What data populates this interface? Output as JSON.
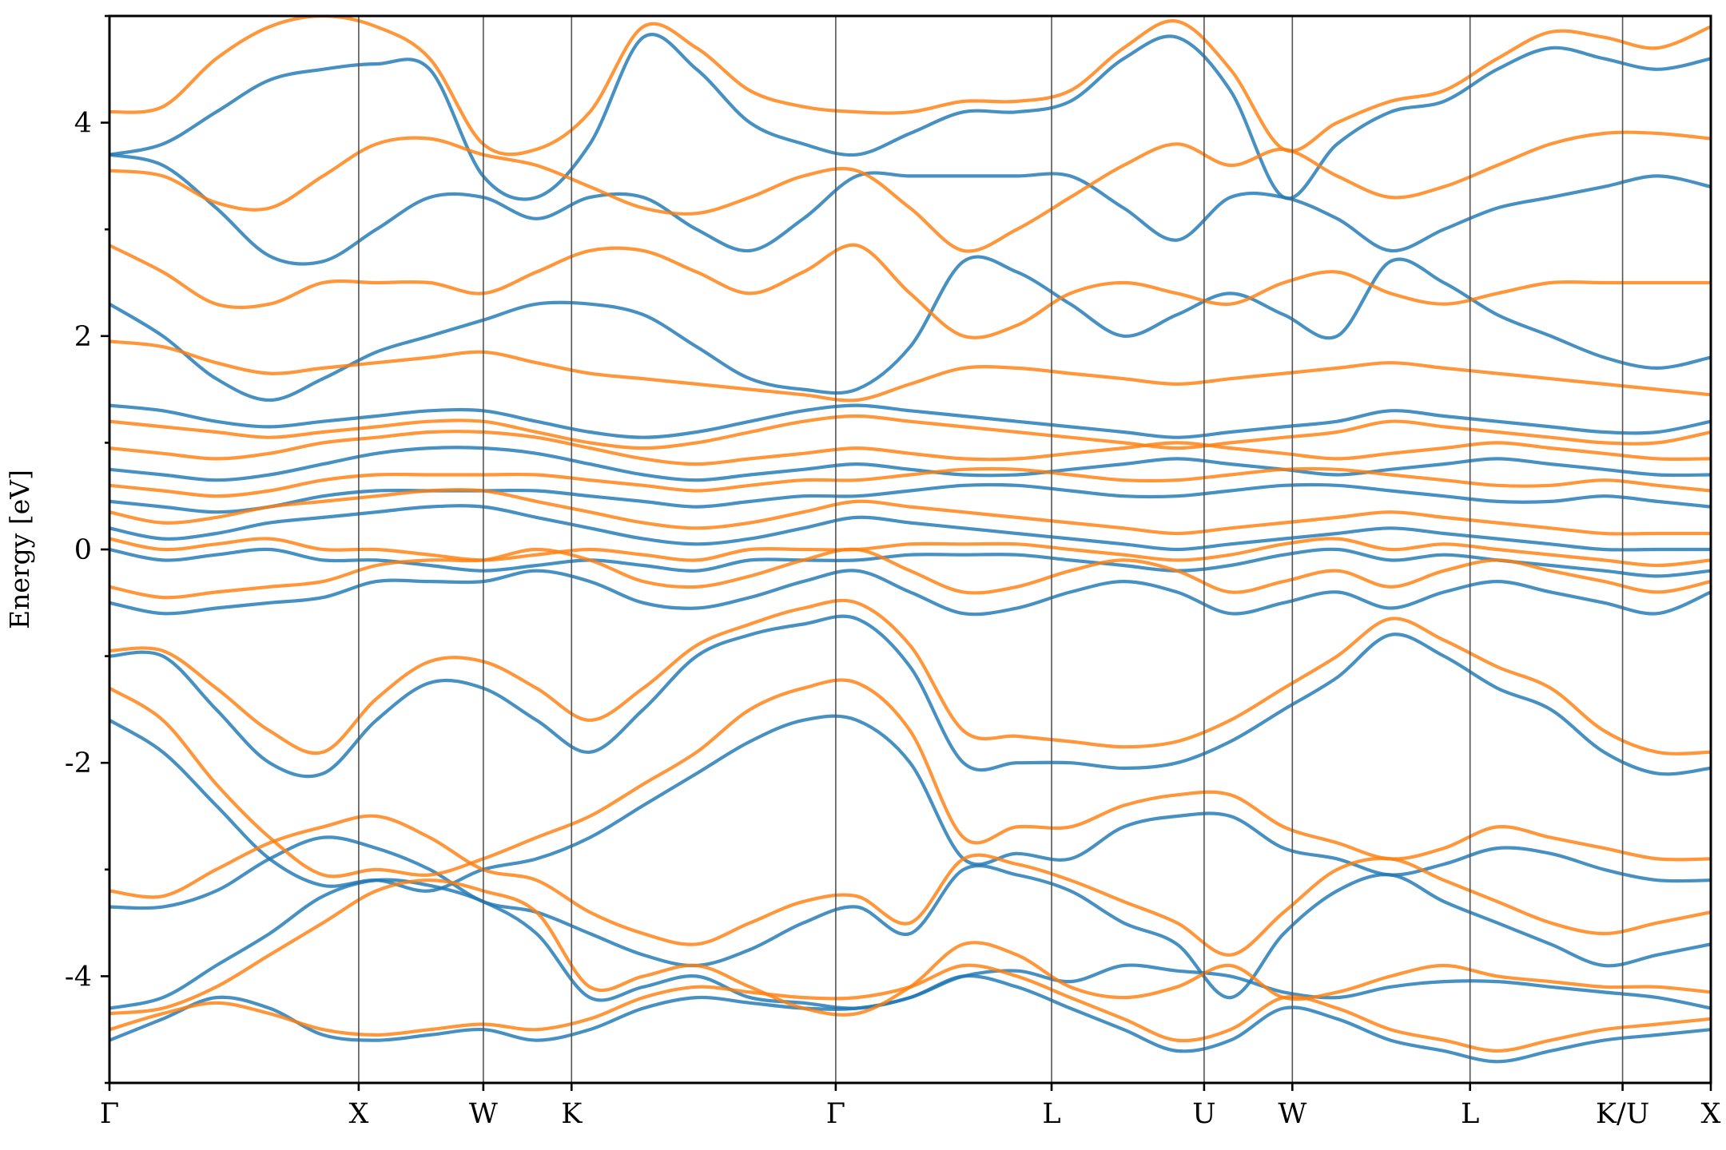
{
  "chart_data": {
    "type": "line",
    "title": "",
    "ylabel": "Energy [eV]",
    "xlabel": "",
    "ylim": [
      -5,
      5
    ],
    "yticks": [
      -4,
      -2,
      0,
      2,
      4
    ],
    "yticks_minor": [
      -5,
      -3,
      -1,
      1,
      3,
      5
    ],
    "grid": false,
    "legend": "none",
    "kpath": {
      "labels": [
        "Γ",
        "X",
        "W",
        "K",
        "Γ",
        "L",
        "U",
        "W",
        "L",
        "K/U",
        "X"
      ],
      "positions": [
        0,
        1.0,
        1.5,
        1.854,
        2.914,
        3.78,
        4.392,
        4.746,
        5.459,
        6.071,
        6.425
      ]
    },
    "series": [
      {
        "color": "#1f77b4",
        "bands": [
          [
            -4.3,
            -4.2,
            -3.9,
            -3.6,
            -3.25,
            -3.1,
            -3.15,
            -3.3,
            -3.6,
            -4.2,
            -4.1,
            -4.0,
            -4.2,
            -4.25,
            -4.3,
            -4.2,
            -4.0,
            -3.95,
            -4.05,
            -3.9,
            -3.95,
            -4.0,
            -4.15,
            -4.2,
            -4.1,
            -4.05,
            -4.05,
            -4.1,
            -4.15,
            -4.2,
            -4.3
          ],
          [
            -3.35,
            -3.35,
            -3.2,
            -2.9,
            -2.7,
            -2.8,
            -3.0,
            -3.3,
            -3.4,
            -3.6,
            -3.8,
            -3.9,
            -3.75,
            -3.5,
            -3.35,
            -3.6,
            -3.0,
            -3.05,
            -3.2,
            -3.5,
            -3.7,
            -4.2,
            -3.6,
            -3.2,
            -3.05,
            -3.3,
            -3.5,
            -3.7,
            -3.9,
            -3.8,
            -3.7
          ],
          [
            -1.6,
            -1.9,
            -2.4,
            -2.9,
            -3.15,
            -3.1,
            -3.2,
            -3.0,
            -2.9,
            -2.7,
            -2.4,
            -2.1,
            -1.8,
            -1.6,
            -1.6,
            -2.0,
            -2.9,
            -2.85,
            -2.9,
            -2.6,
            -2.5,
            -2.5,
            -2.8,
            -2.9,
            -3.05,
            -2.95,
            -2.8,
            -2.85,
            -3.0,
            -3.1,
            -3.1
          ],
          [
            -1.0,
            -1.0,
            -1.5,
            -2.0,
            -2.1,
            -1.6,
            -1.25,
            -1.3,
            -1.6,
            -1.9,
            -1.5,
            -1.0,
            -0.8,
            -0.7,
            -0.65,
            -1.1,
            -2.0,
            -2.0,
            -2.0,
            -2.05,
            -2.0,
            -1.8,
            -1.5,
            -1.2,
            -0.8,
            -1.0,
            -1.3,
            -1.5,
            -1.9,
            -2.1,
            -2.05
          ],
          [
            -0.5,
            -0.6,
            -0.55,
            -0.5,
            -0.45,
            -0.3,
            -0.3,
            -0.3,
            -0.2,
            -0.3,
            -0.5,
            -0.55,
            -0.45,
            -0.3,
            -0.2,
            -0.4,
            -0.6,
            -0.55,
            -0.4,
            -0.3,
            -0.4,
            -0.6,
            -0.5,
            -0.4,
            -0.55,
            -0.4,
            -0.3,
            -0.4,
            -0.5,
            -0.6,
            -0.4
          ],
          [
            0.0,
            -0.1,
            -0.05,
            0.0,
            -0.1,
            -0.1,
            -0.15,
            -0.2,
            -0.15,
            -0.1,
            -0.15,
            -0.2,
            -0.1,
            -0.1,
            -0.1,
            -0.05,
            -0.05,
            -0.05,
            -0.1,
            -0.15,
            -0.2,
            -0.15,
            -0.05,
            0.0,
            -0.1,
            -0.05,
            -0.1,
            -0.15,
            -0.2,
            -0.25,
            -0.2
          ],
          [
            0.2,
            0.1,
            0.15,
            0.25,
            0.3,
            0.35,
            0.4,
            0.4,
            0.3,
            0.2,
            0.1,
            0.05,
            0.1,
            0.2,
            0.3,
            0.25,
            0.2,
            0.15,
            0.1,
            0.05,
            0.0,
            0.05,
            0.1,
            0.15,
            0.2,
            0.15,
            0.1,
            0.05,
            0.0,
            0.0,
            0.0
          ],
          [
            0.45,
            0.4,
            0.35,
            0.4,
            0.5,
            0.55,
            0.55,
            0.55,
            0.55,
            0.5,
            0.45,
            0.4,
            0.45,
            0.5,
            0.5,
            0.55,
            0.6,
            0.6,
            0.55,
            0.5,
            0.5,
            0.55,
            0.6,
            0.6,
            0.55,
            0.5,
            0.45,
            0.45,
            0.5,
            0.45,
            0.4
          ],
          [
            0.75,
            0.7,
            0.65,
            0.7,
            0.8,
            0.9,
            0.95,
            0.95,
            0.9,
            0.8,
            0.7,
            0.65,
            0.7,
            0.75,
            0.8,
            0.75,
            0.7,
            0.7,
            0.75,
            0.8,
            0.85,
            0.8,
            0.75,
            0.7,
            0.75,
            0.8,
            0.85,
            0.8,
            0.75,
            0.7,
            0.7
          ],
          [
            1.35,
            1.3,
            1.2,
            1.15,
            1.2,
            1.25,
            1.3,
            1.3,
            1.2,
            1.1,
            1.05,
            1.1,
            1.2,
            1.3,
            1.35,
            1.3,
            1.25,
            1.2,
            1.15,
            1.1,
            1.05,
            1.1,
            1.15,
            1.2,
            1.3,
            1.25,
            1.2,
            1.15,
            1.1,
            1.1,
            1.2
          ],
          [
            2.3,
            2.0,
            1.6,
            1.4,
            1.6,
            1.85,
            2.0,
            2.15,
            2.3,
            2.3,
            2.2,
            1.9,
            1.6,
            1.5,
            1.5,
            1.9,
            2.7,
            2.6,
            2.3,
            2.0,
            2.2,
            2.4,
            2.2,
            2.0,
            2.7,
            2.5,
            2.2,
            2.0,
            1.8,
            1.7,
            1.8
          ],
          [
            3.7,
            3.6,
            3.2,
            2.75,
            2.7,
            3.0,
            3.3,
            3.3,
            3.1,
            3.3,
            3.3,
            3.0,
            2.8,
            3.1,
            3.5,
            3.5,
            3.5,
            3.5,
            3.5,
            3.2,
            2.9,
            3.3,
            3.3,
            3.1,
            2.8,
            3.0,
            3.2,
            3.3,
            3.4,
            3.5,
            3.4
          ],
          [
            3.7,
            3.8,
            4.1,
            4.4,
            4.5,
            4.55,
            4.5,
            3.5,
            3.3,
            3.8,
            4.8,
            4.5,
            4.0,
            3.8,
            3.7,
            3.9,
            4.1,
            4.1,
            4.2,
            4.6,
            4.8,
            4.3,
            3.3,
            3.8,
            4.1,
            4.2,
            4.5,
            4.7,
            4.6,
            4.5,
            4.6
          ],
          [
            -4.6,
            -4.4,
            -4.2,
            -4.3,
            -4.55,
            -4.6,
            -4.55,
            -4.5,
            -4.6,
            -4.5,
            -4.3,
            -4.2,
            -4.25,
            -4.3,
            -4.3,
            -4.2,
            -4.0,
            -4.1,
            -4.3,
            -4.5,
            -4.7,
            -4.6,
            -4.3,
            -4.4,
            -4.6,
            -4.7,
            -4.8,
            -4.7,
            -4.6,
            -4.55,
            -4.5
          ]
        ]
      },
      {
        "color": "#ff7f0e",
        "bands": [
          [
            -4.35,
            -4.3,
            -4.1,
            -3.8,
            -3.5,
            -3.2,
            -3.1,
            -3.2,
            -3.4,
            -4.1,
            -4.0,
            -3.9,
            -4.1,
            -4.3,
            -4.35,
            -4.1,
            -3.7,
            -3.8,
            -4.1,
            -4.2,
            -4.1,
            -3.9,
            -4.2,
            -4.15,
            -4.0,
            -3.9,
            -4.0,
            -4.05,
            -4.1,
            -4.1,
            -4.15
          ],
          [
            -3.2,
            -3.25,
            -3.0,
            -2.75,
            -2.6,
            -2.5,
            -2.7,
            -3.0,
            -3.1,
            -3.4,
            -3.6,
            -3.7,
            -3.5,
            -3.3,
            -3.25,
            -3.5,
            -2.9,
            -2.95,
            -3.1,
            -3.3,
            -3.5,
            -3.8,
            -3.4,
            -3.0,
            -2.9,
            -3.1,
            -3.3,
            -3.5,
            -3.6,
            -3.5,
            -3.4
          ],
          [
            -1.3,
            -1.6,
            -2.2,
            -2.7,
            -3.05,
            -3.0,
            -3.05,
            -2.9,
            -2.7,
            -2.5,
            -2.2,
            -1.9,
            -1.5,
            -1.3,
            -1.25,
            -1.7,
            -2.7,
            -2.6,
            -2.6,
            -2.4,
            -2.3,
            -2.3,
            -2.6,
            -2.75,
            -2.9,
            -2.8,
            -2.6,
            -2.7,
            -2.8,
            -2.9,
            -2.9
          ],
          [
            -0.95,
            -0.95,
            -1.3,
            -1.7,
            -1.9,
            -1.4,
            -1.05,
            -1.05,
            -1.3,
            -1.6,
            -1.3,
            -0.9,
            -0.7,
            -0.55,
            -0.5,
            -0.9,
            -1.7,
            -1.75,
            -1.8,
            -1.85,
            -1.8,
            -1.6,
            -1.3,
            -1.0,
            -0.65,
            -0.85,
            -1.1,
            -1.3,
            -1.7,
            -1.9,
            -1.9
          ],
          [
            -0.35,
            -0.45,
            -0.4,
            -0.35,
            -0.3,
            -0.15,
            -0.1,
            -0.1,
            0.0,
            -0.1,
            -0.3,
            -0.35,
            -0.25,
            -0.1,
            0.0,
            -0.2,
            -0.4,
            -0.35,
            -0.2,
            -0.1,
            -0.2,
            -0.4,
            -0.3,
            -0.2,
            -0.35,
            -0.2,
            -0.1,
            -0.2,
            -0.3,
            -0.4,
            -0.3
          ],
          [
            0.1,
            0.0,
            0.05,
            0.1,
            0.0,
            0.0,
            -0.05,
            -0.1,
            -0.05,
            0.0,
            -0.05,
            -0.1,
            0.0,
            0.0,
            0.0,
            0.05,
            0.05,
            0.05,
            0.0,
            -0.05,
            -0.1,
            -0.05,
            0.05,
            0.1,
            0.0,
            0.05,
            0.0,
            -0.05,
            -0.1,
            -0.15,
            -0.1
          ],
          [
            0.35,
            0.25,
            0.3,
            0.4,
            0.45,
            0.5,
            0.55,
            0.55,
            0.45,
            0.35,
            0.25,
            0.2,
            0.25,
            0.35,
            0.45,
            0.4,
            0.35,
            0.3,
            0.25,
            0.2,
            0.15,
            0.2,
            0.25,
            0.3,
            0.35,
            0.3,
            0.25,
            0.2,
            0.15,
            0.15,
            0.15
          ],
          [
            0.6,
            0.55,
            0.5,
            0.55,
            0.65,
            0.7,
            0.7,
            0.7,
            0.7,
            0.65,
            0.6,
            0.55,
            0.6,
            0.65,
            0.65,
            0.7,
            0.75,
            0.75,
            0.7,
            0.65,
            0.65,
            0.7,
            0.75,
            0.75,
            0.7,
            0.65,
            0.6,
            0.6,
            0.65,
            0.6,
            0.55
          ],
          [
            0.95,
            0.9,
            0.85,
            0.9,
            1.0,
            1.05,
            1.1,
            1.1,
            1.05,
            0.95,
            0.85,
            0.8,
            0.85,
            0.9,
            0.95,
            0.9,
            0.85,
            0.85,
            0.9,
            0.95,
            1.0,
            0.95,
            0.9,
            0.85,
            0.9,
            0.95,
            1.0,
            0.95,
            0.9,
            0.85,
            0.85
          ],
          [
            1.2,
            1.15,
            1.1,
            1.05,
            1.1,
            1.15,
            1.2,
            1.2,
            1.1,
            1.0,
            0.95,
            1.0,
            1.1,
            1.2,
            1.25,
            1.2,
            1.15,
            1.1,
            1.05,
            1.0,
            0.95,
            1.0,
            1.05,
            1.1,
            1.2,
            1.15,
            1.1,
            1.05,
            1.0,
            1.0,
            1.1
          ],
          [
            1.95,
            1.9,
            1.75,
            1.65,
            1.7,
            1.75,
            1.8,
            1.85,
            1.75,
            1.65,
            1.6,
            1.55,
            1.5,
            1.45,
            1.4,
            1.55,
            1.7,
            1.7,
            1.65,
            1.6,
            1.55,
            1.6,
            1.65,
            1.7,
            1.75,
            1.7,
            1.65,
            1.6,
            1.55,
            1.5,
            1.45
          ],
          [
            2.85,
            2.6,
            2.3,
            2.3,
            2.5,
            2.5,
            2.5,
            2.4,
            2.6,
            2.8,
            2.8,
            2.6,
            2.4,
            2.6,
            2.85,
            2.4,
            2.0,
            2.1,
            2.4,
            2.5,
            2.4,
            2.3,
            2.5,
            2.6,
            2.4,
            2.3,
            2.4,
            2.5,
            2.5,
            2.5,
            2.5
          ],
          [
            3.55,
            3.5,
            3.25,
            3.2,
            3.5,
            3.8,
            3.85,
            3.7,
            3.6,
            3.4,
            3.2,
            3.15,
            3.3,
            3.5,
            3.55,
            3.2,
            2.8,
            3.0,
            3.3,
            3.6,
            3.8,
            3.6,
            3.75,
            3.5,
            3.3,
            3.4,
            3.6,
            3.8,
            3.9,
            3.9,
            3.85
          ],
          [
            4.1,
            4.15,
            4.6,
            4.9,
            5.0,
            4.9,
            4.6,
            3.8,
            3.75,
            4.1,
            4.9,
            4.7,
            4.3,
            4.15,
            4.1,
            4.1,
            4.2,
            4.2,
            4.3,
            4.7,
            4.95,
            4.5,
            3.75,
            4.0,
            4.2,
            4.3,
            4.6,
            4.85,
            4.8,
            4.7,
            4.9
          ],
          [
            -4.5,
            -4.35,
            -4.25,
            -4.35,
            -4.5,
            -4.55,
            -4.5,
            -4.45,
            -4.5,
            -4.4,
            -4.2,
            -4.1,
            -4.15,
            -4.2,
            -4.2,
            -4.1,
            -3.9,
            -4.0,
            -4.2,
            -4.4,
            -4.6,
            -4.5,
            -4.2,
            -4.3,
            -4.5,
            -4.6,
            -4.7,
            -4.6,
            -4.5,
            -4.45,
            -4.4
          ]
        ]
      }
    ]
  }
}
